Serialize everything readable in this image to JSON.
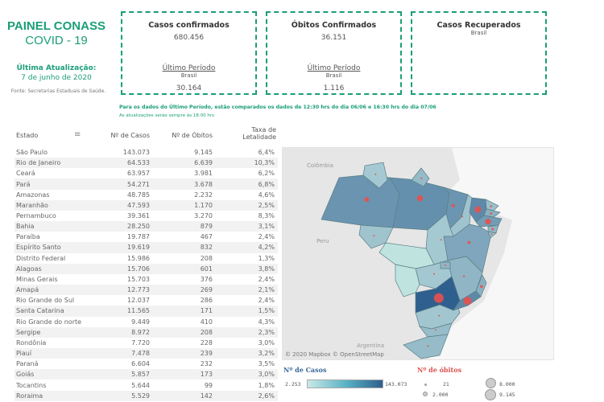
{
  "header": {
    "title": "PAINEL CONASS",
    "subtitle": "COVID - 19",
    "update_label": "Última Atualização:",
    "update_date": "7 de junho de 2020",
    "source": "Fonte: Secretarias Estaduais de Saúde."
  },
  "cards": [
    {
      "title": "Casos confirmados",
      "value": "680.456",
      "period_label": "Último Período",
      "region": "Brasil",
      "period_value": "30.164"
    },
    {
      "title": "Óbitos Confirmados",
      "value": "36.151",
      "period_label": "Último Período",
      "region": "Brasil",
      "period_value": "1.116"
    },
    {
      "title": "Casos Recuperados",
      "region": "Brasil"
    }
  ],
  "notes": {
    "line1": "Para os dados do Último Período, estão comparados os dados de 12:30 hrs do dia 06/06 e 16:30 hrs do dia 07/06",
    "line2": "As atualizações serão sempre às 18:00 hrs"
  },
  "table": {
    "headers": [
      "Estado",
      "Nº de Casos",
      "Nº de Óbitos",
      "Taxa de",
      "Letalidade"
    ],
    "sort_icon": "sort-icon",
    "rows": [
      [
        "São Paulo",
        "143.073",
        "9.145",
        "6,4%"
      ],
      [
        "Rio de Janeiro",
        "64.533",
        "6.639",
        "10,3%"
      ],
      [
        "Ceará",
        "63.957",
        "3.981",
        "6,2%"
      ],
      [
        "Pará",
        "54.271",
        "3.678",
        "6,8%"
      ],
      [
        "Amazonas",
        "48.785",
        "2.232",
        "4,6%"
      ],
      [
        "Maranhão",
        "47.593",
        "1.170",
        "2,5%"
      ],
      [
        "Pernambuco",
        "39.361",
        "3.270",
        "8,3%"
      ],
      [
        "Bahia",
        "28.250",
        "879",
        "3,1%"
      ],
      [
        "Paraíba",
        "19.787",
        "467",
        "2,4%"
      ],
      [
        "Espírito Santo",
        "19.619",
        "832",
        "4,2%"
      ],
      [
        "Distrito Federal",
        "15.986",
        "208",
        "1,3%"
      ],
      [
        "Alagoas",
        "15.706",
        "601",
        "3,8%"
      ],
      [
        "Minas Gerais",
        "15.703",
        "376",
        "2,4%"
      ],
      [
        "Amapá",
        "12.773",
        "269",
        "2,1%"
      ],
      [
        "Rio Grande do Sul",
        "12.037",
        "286",
        "2,4%"
      ],
      [
        "Santa Catarina",
        "11.565",
        "171",
        "1,5%"
      ],
      [
        "Rio Grande do norte",
        "9.449",
        "410",
        "4,3%"
      ],
      [
        "Sergipe",
        "8.972",
        "208",
        "2,3%"
      ],
      [
        "Rondônia",
        "7.720",
        "228",
        "3,0%"
      ],
      [
        "Piauí",
        "7.478",
        "239",
        "3,2%"
      ],
      [
        "Paraná",
        "6.604",
        "232",
        "3,5%"
      ],
      [
        "Goiás",
        "5.857",
        "173",
        "3,0%"
      ],
      [
        "Tocantins",
        "5.644",
        "99",
        "1,8%"
      ],
      [
        "Roraima",
        "5.529",
        "142",
        "2,6%"
      ]
    ]
  },
  "map": {
    "labels": {
      "colombia": "Colômbia",
      "peru": "Peru",
      "argentina": "Argentina"
    },
    "attribution": "© 2020 Mapbox © OpenStreetMap",
    "bubble_color": "#e8504f",
    "choropleth": [
      "#c9e9e6",
      "#2f5f8e"
    ]
  },
  "legend": {
    "cases_title": "Nº de Casos",
    "cases_min": "2.253",
    "cases_max": "143.073",
    "deaths_title": "Nº de óbitos",
    "deaths_values": [
      "21",
      "2.000",
      "8.000",
      "9.145"
    ]
  }
}
